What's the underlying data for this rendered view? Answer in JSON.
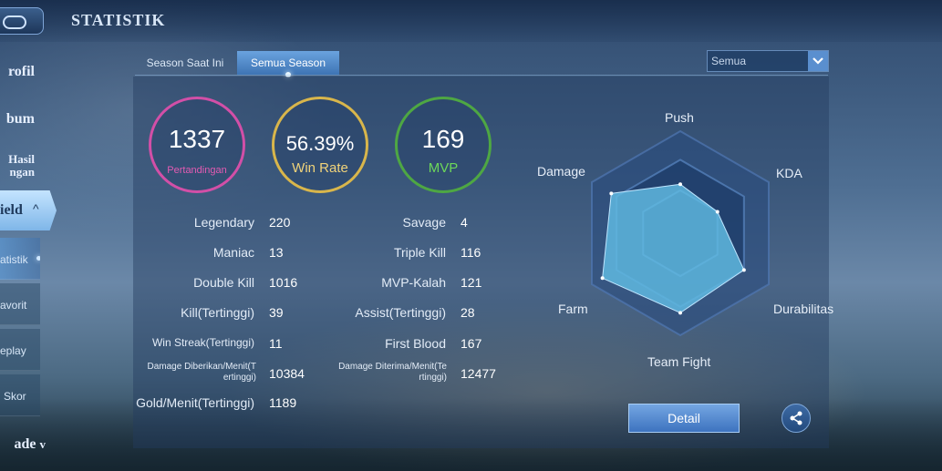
{
  "header": {
    "title": "STATISTIK"
  },
  "sidebar": {
    "items": [
      {
        "label": "rofil"
      },
      {
        "label": "bum"
      },
      {
        "label_line1": "Hasil",
        "label_line2": "ngan"
      },
      {
        "label": "ield",
        "chevron": "^"
      },
      {
        "label": "atistik"
      },
      {
        "label": "avorit"
      },
      {
        "label": "eplay"
      },
      {
        "label": "Skor"
      },
      {
        "label": "ade",
        "chevron": "v"
      }
    ]
  },
  "tabs": [
    {
      "label": "Season Saat Ini"
    },
    {
      "label": "Semua Season",
      "active": true
    }
  ],
  "filter": {
    "selected": "Semua"
  },
  "summary": {
    "matches": {
      "value": "1337",
      "label": "Pertandingan",
      "color": "#d24fa7"
    },
    "winrate": {
      "value": "56.39%",
      "label": "Win Rate",
      "color": "#d9b64b"
    },
    "mvp": {
      "value": "169",
      "label": "MVP",
      "color": "#4ea743"
    }
  },
  "stats_left": [
    {
      "label": "Legendary",
      "value": "220"
    },
    {
      "label": "Maniac",
      "value": "13"
    },
    {
      "label": "Double Kill",
      "value": "1016"
    },
    {
      "label": "Kill(Tertinggi)",
      "value": "39"
    },
    {
      "label": "Win Streak(Tertinggi)",
      "value": "11"
    },
    {
      "label_line1": "Damage Diberikan/Menit(T",
      "label_line2": "ertinggi)",
      "value": "10384"
    },
    {
      "label": "Gold/Menit(Tertinggi)",
      "value": "1189"
    }
  ],
  "stats_right": [
    {
      "label": "Savage",
      "value": "4"
    },
    {
      "label": "Triple Kill",
      "value": "116"
    },
    {
      "label": "MVP-Kalah",
      "value": "121"
    },
    {
      "label": "Assist(Tertinggi)",
      "value": "28"
    },
    {
      "label": "First Blood",
      "value": "167"
    },
    {
      "label_line1": "Damage Diterima/Menit(Te",
      "label_line2": "rtinggi)",
      "value": "12477"
    }
  ],
  "radar": {
    "axes": [
      "Push",
      "KDA",
      "Durabilitas",
      "Team Fight",
      "Farm",
      "Damage"
    ],
    "levels": [
      0.48,
      0.42,
      0.72,
      0.78,
      0.88,
      0.78
    ],
    "fill_color": "#5fb8e0"
  },
  "buttons": {
    "detail": "Detail",
    "share_icon": "share-icon"
  }
}
